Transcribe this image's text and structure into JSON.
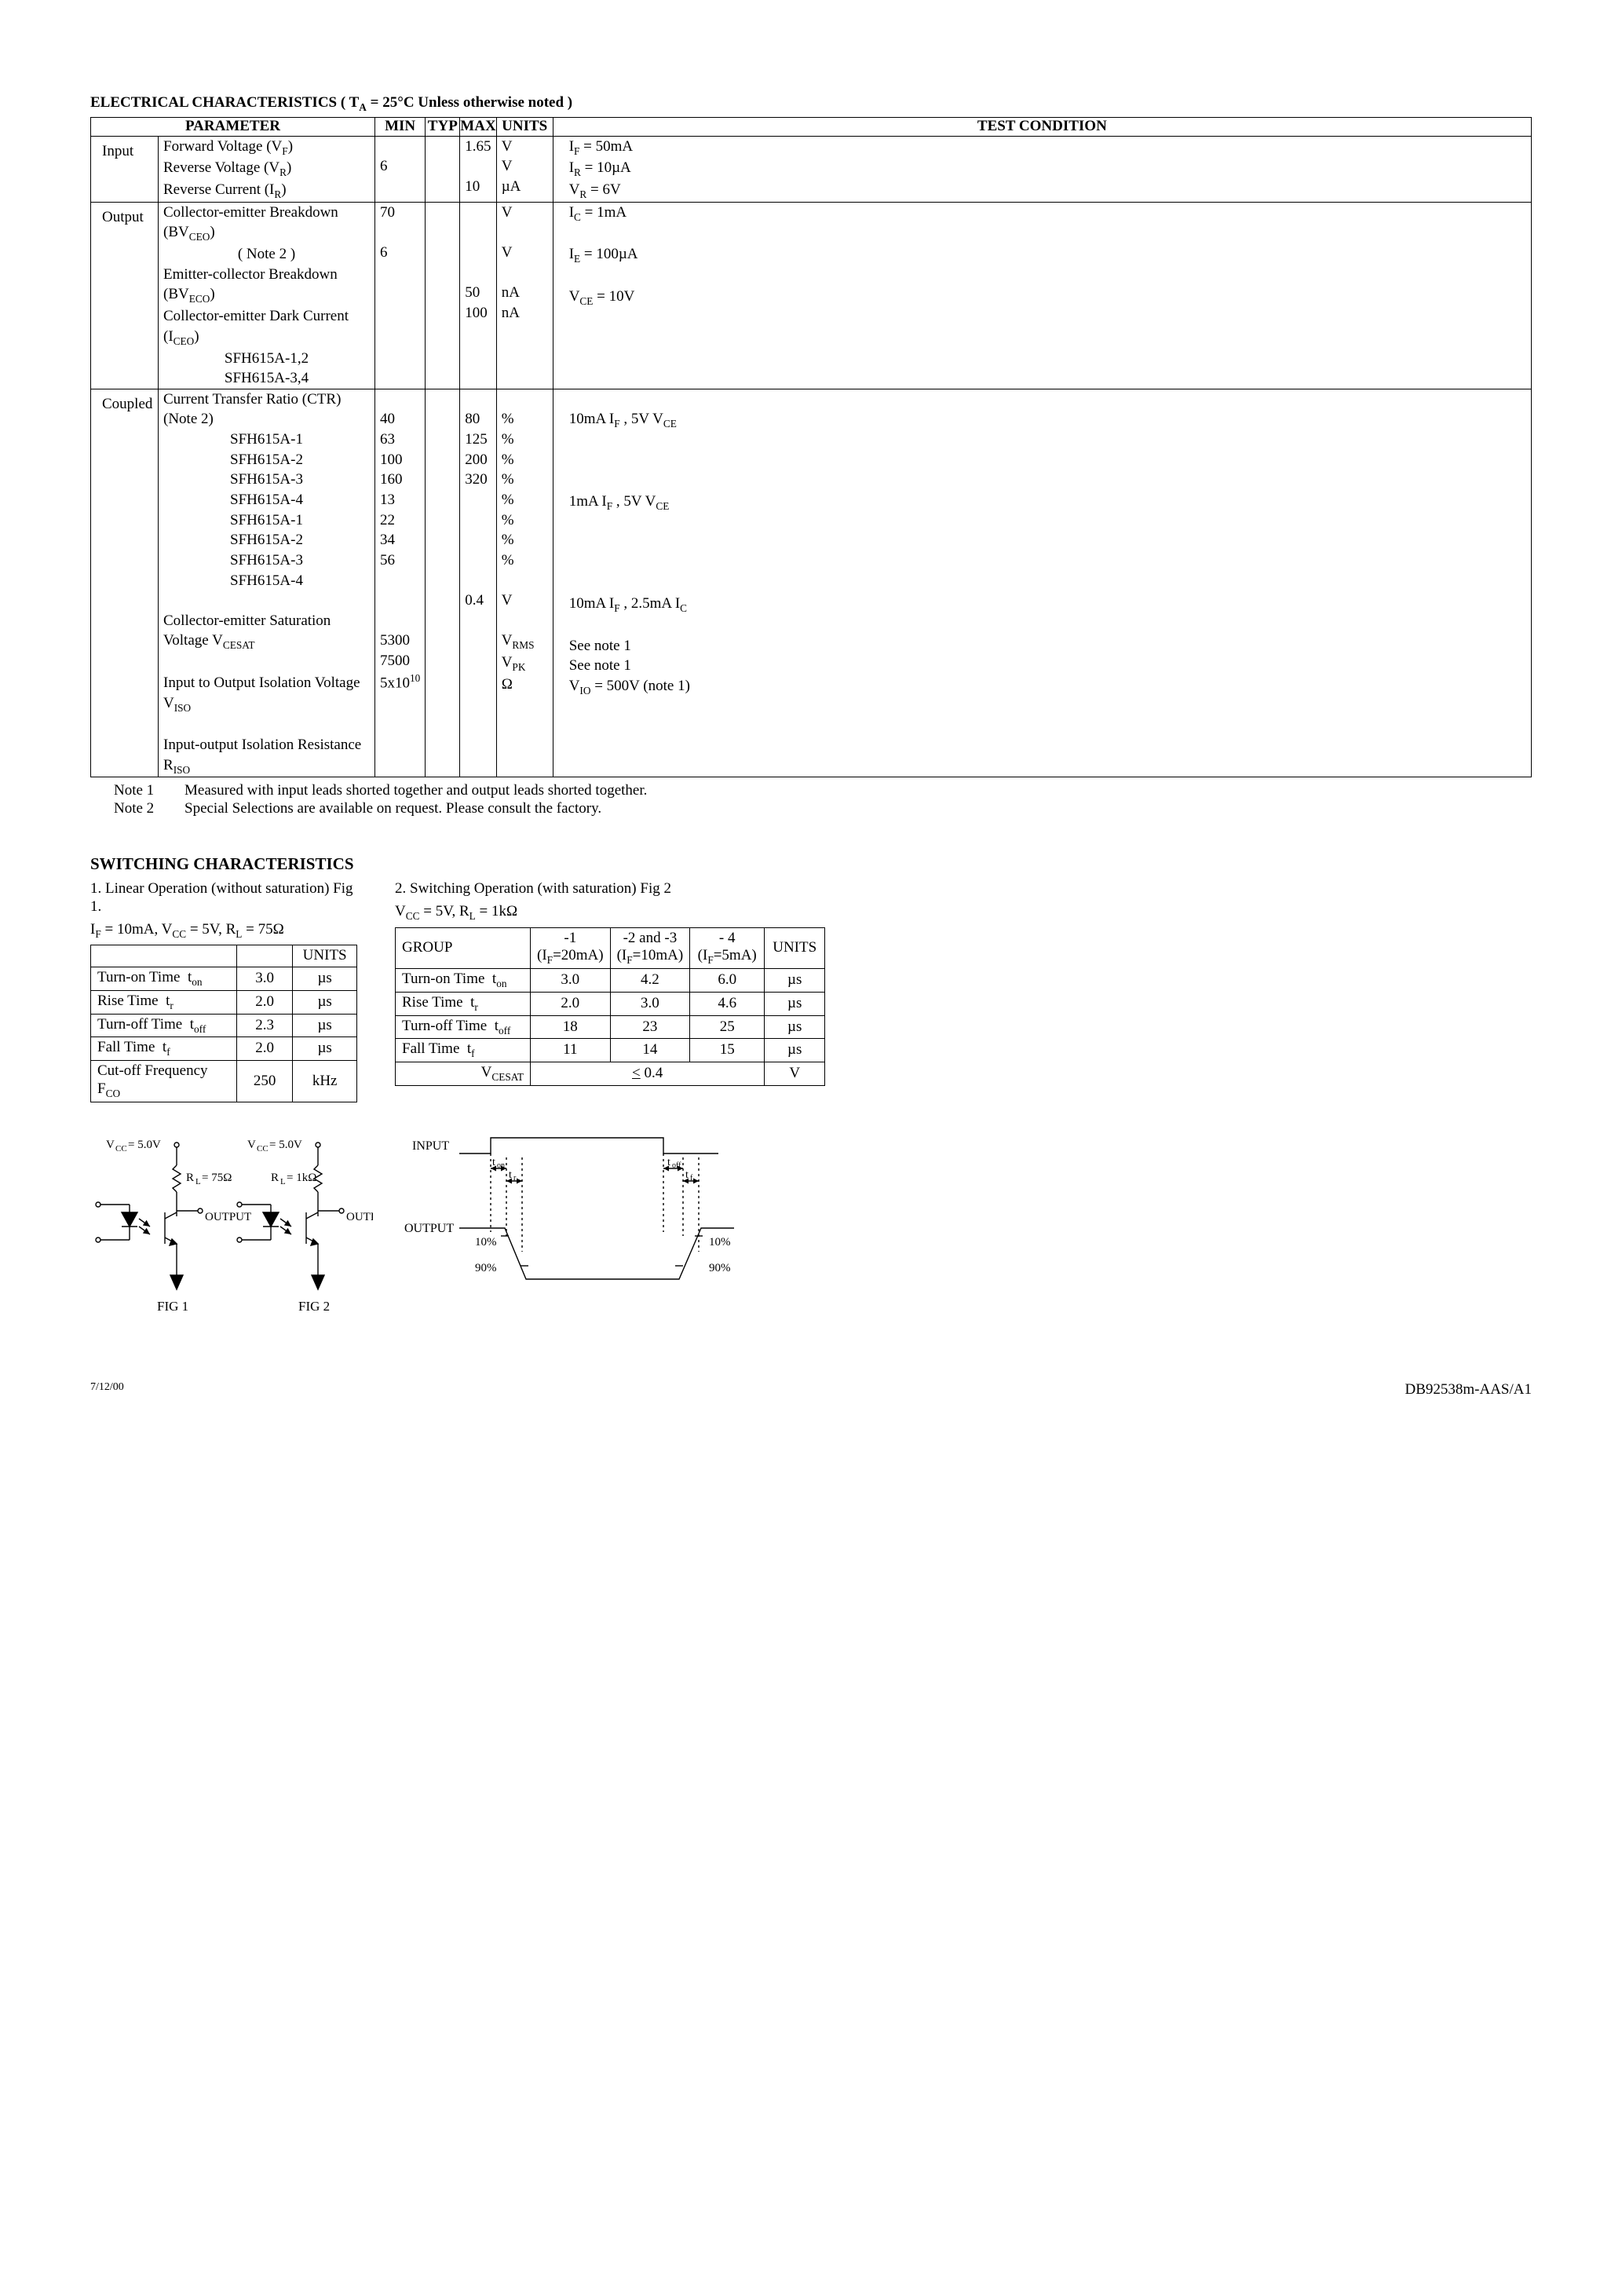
{
  "title": "ELECTRICAL CHARACTERISTICS ( T<sub>A</sub> = 25°C Unless otherwise noted )",
  "ec_headers": {
    "parameter": "PARAMETER",
    "min": "MIN",
    "typ": "TYP",
    "max": "MAX",
    "units": "UNITS",
    "test": "TEST CONDITION"
  },
  "ec_sections": [
    {
      "group": "Input",
      "rows": [
        {
          "param": "Forward Voltage (V<sub>F</sub>)",
          "min": "",
          "typ": "",
          "max": "1.65",
          "units": "V",
          "test": "I<sub>F</sub> = 50mA"
        },
        {
          "param": "Reverse Voltage (V<sub>R</sub>)",
          "min": "6",
          "typ": "",
          "max": "",
          "units": "V",
          "test": "I<sub>R</sub> = 10µA"
        },
        {
          "param": "Reverse Current (I<sub>R</sub>)",
          "min": "",
          "typ": "",
          "max": "10",
          "units": "µA",
          "test": "V<sub>R</sub> = 6V"
        }
      ]
    },
    {
      "group": "Output",
      "rows": [
        {
          "param": "Collector-emitter Breakdown (BV<sub>CEO</sub>)",
          "min": "70",
          "typ": "",
          "max": "",
          "units": "V",
          "test": "I<sub>C</sub> = 1mA"
        },
        {
          "param": "( Note 2 )",
          "align": "center",
          "min": "",
          "typ": "",
          "max": "",
          "units": "",
          "test": ""
        },
        {
          "param": "Emitter-collector Breakdown (BV<sub>ECO</sub>)",
          "min": "6",
          "typ": "",
          "max": "",
          "units": "V",
          "test": "I<sub>E</sub> = 100µA"
        },
        {
          "param": "Collector-emitter Dark Current (I<sub>CEO</sub>)",
          "min": "",
          "typ": "",
          "max": "",
          "units": "",
          "test": ""
        },
        {
          "param": "SFH615A-1,2",
          "align": "center",
          "min": "",
          "typ": "",
          "max": "50",
          "units": "nA",
          "test": "V<sub>CE</sub> = 10V"
        },
        {
          "param": "SFH615A-3,4",
          "align": "center",
          "min": "",
          "typ": "",
          "max": "100",
          "units": "nA",
          "test": ""
        }
      ]
    },
    {
      "group": "Coupled",
      "rows": [
        {
          "param": "Current Transfer Ratio (CTR) (Note 2)",
          "min": "",
          "typ": "",
          "max": "",
          "units": "",
          "test": ""
        },
        {
          "param": "SFH615A-1",
          "align": "center",
          "min": "40",
          "typ": "",
          "max": "80",
          "units": "%",
          "test": "10mA I<sub>F</sub> , 5V V<sub>CE</sub>"
        },
        {
          "param": "SFH615A-2",
          "align": "center",
          "min": "63",
          "typ": "",
          "max": "125",
          "units": "%",
          "test": ""
        },
        {
          "param": "SFH615A-3",
          "align": "center",
          "min": "100",
          "typ": "",
          "max": "200",
          "units": "%",
          "test": ""
        },
        {
          "param": "SFH615A-4",
          "align": "center",
          "min": "160",
          "typ": "",
          "max": "320",
          "units": "%",
          "test": ""
        },
        {
          "param": "SFH615A-1",
          "align": "center",
          "min": "13",
          "typ": "",
          "max": "",
          "units": "%",
          "test": "1mA I<sub>F</sub> , 5V V<sub>CE</sub>"
        },
        {
          "param": "SFH615A-2",
          "align": "center",
          "min": "22",
          "typ": "",
          "max": "",
          "units": "%",
          "test": ""
        },
        {
          "param": "SFH615A-3",
          "align": "center",
          "min": "34",
          "typ": "",
          "max": "",
          "units": "%",
          "test": ""
        },
        {
          "param": "SFH615A-4",
          "align": "center",
          "min": "56",
          "typ": "",
          "max": "",
          "units": "%",
          "test": ""
        },
        {
          "spacer": true
        },
        {
          "param": "Collector-emitter Saturation Voltage V<sub>CESAT</sub>",
          "min": "",
          "typ": "",
          "max": "0.4",
          "units": "V",
          "test": "10mA I<sub>F</sub> , 2.5mA I<sub>C</sub>"
        },
        {
          "spacer": true
        },
        {
          "param": "Input to Output Isolation Voltage V<sub>ISO</sub>",
          "min": "5300",
          "typ": "",
          "max": "",
          "units": "V<sub>RMS</sub>",
          "test": "See note 1"
        },
        {
          "param": "",
          "min": "7500",
          "typ": "",
          "max": "",
          "units": "V<sub>PK</sub>",
          "test": "See note 1"
        },
        {
          "param": "Input-output Isolation Resistance R<sub>ISO</sub>",
          "min": "5x10<sup>10</sup>",
          "typ": "",
          "max": "",
          "units": "Ω",
          "test": "V<sub>IO</sub> = 500V (note 1)"
        }
      ]
    }
  ],
  "notes": [
    {
      "n": "Note 1",
      "t": "Measured with input leads shorted together and output leads shorted together."
    },
    {
      "n": "Note 2",
      "t": "Special Selections are available on request. Please consult the factory."
    }
  ],
  "sw_title": "SWITCHING CHARACTERISTICS",
  "sw1": {
    "intro1": "1. Linear Operation (without saturation) Fig 1.",
    "intro2": "I<sub>F</sub> = 10mA, V<sub>CC</sub> = 5V, R<sub>L</sub> = 75Ω",
    "units_hdr": "UNITS",
    "rows": [
      {
        "label": "Turn-on Time",
        "sym": "t<sub>on</sub>",
        "val": "3.0",
        "u": "µs"
      },
      {
        "label": "Rise Time",
        "sym": "t<sub>r</sub>",
        "val": "2.0",
        "u": "µs"
      },
      {
        "label": "Turn-off Time",
        "sym": "t<sub>off</sub>",
        "val": "2.3",
        "u": "µs"
      },
      {
        "label": "Fall Time",
        "sym": "t<sub>f</sub>",
        "val": "2.0",
        "u": "µs"
      },
      {
        "label": "Cut-off Frequency",
        "sym": "F<sub>CO</sub>",
        "val": "250",
        "u": "kHz"
      }
    ]
  },
  "sw2": {
    "intro1": "2.  Switching Operation (with saturation) Fig 2",
    "intro2": "V<sub>CC</sub> = 5V, R<sub>L</sub> = 1kΩ",
    "group_hdr": "GROUP",
    "cols": [
      {
        "t": "-1",
        "s": "(I<sub>F</sub>=20mA)"
      },
      {
        "t": "-2 and -3",
        "s": "(I<sub>F</sub>=10mA)"
      },
      {
        "t": "- 4",
        "s": "(I<sub>F</sub>=5mA)"
      }
    ],
    "units_hdr": "UNITS",
    "rows": [
      {
        "label": "Turn-on Time",
        "sym": "t<sub>on</sub>",
        "v": [
          "3.0",
          "4.2",
          "6.0"
        ],
        "u": "µs"
      },
      {
        "label": "Rise Time",
        "sym": "t<sub>r</sub>",
        "v": [
          "2.0",
          "3.0",
          "4.6"
        ],
        "u": "µs"
      },
      {
        "label": "Turn-off Time",
        "sym": "t<sub>off</sub>",
        "v": [
          "18",
          "23",
          "25"
        ],
        "u": "µs"
      },
      {
        "label": "Fall Time",
        "sym": "t<sub>f</sub>",
        "v": [
          "11",
          "14",
          "15"
        ],
        "u": "µs"
      }
    ],
    "vcesat_label": "V<sub>CESAT</sub>",
    "vcesat_val": "<u>&lt;</u> 0.4",
    "vcesat_unit": "V"
  },
  "figs": {
    "vcc": "V<sub>CC</sub> = 5.0V",
    "rl1": "R<sub>L</sub> = 75Ω",
    "rl2": "R<sub>L</sub> = 1kΩ",
    "out": "OUTPUT",
    "fig1": "FIG 1",
    "fig2": "FIG 2",
    "input": "INPUT",
    "output": "OUTPUT",
    "ton": "t<sub>on</sub>",
    "tr": "t<sub>r</sub>",
    "toff": "t<sub>off</sub>",
    "tf": "t<sub>f</sub>",
    "p10": "10%",
    "p90": "90%"
  },
  "footer_l": "7/12/00",
  "footer_r": "DB92538m-AAS/A1"
}
